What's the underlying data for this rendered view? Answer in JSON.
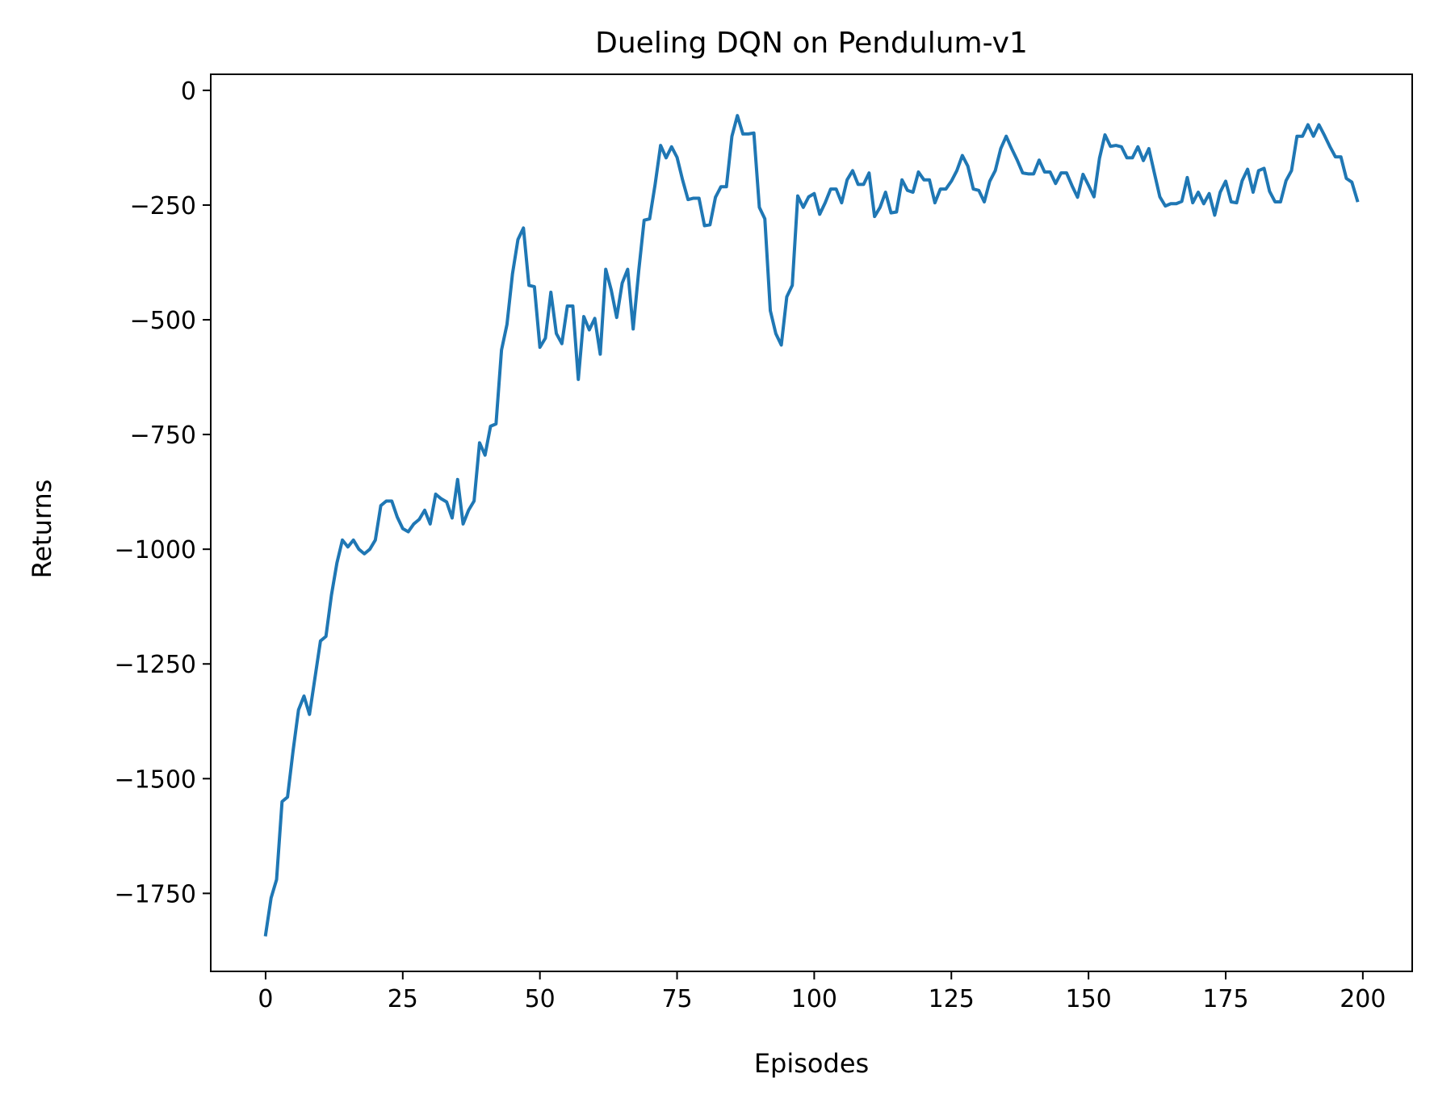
{
  "chart_data": {
    "type": "line",
    "title": "Dueling DQN on Pendulum-v1",
    "xlabel": "Episodes",
    "ylabel": "Returns",
    "xlim": [
      -10,
      209
    ],
    "ylim": [
      -1920,
      35
    ],
    "xticks": [
      0,
      25,
      50,
      75,
      100,
      125,
      150,
      175,
      200
    ],
    "xtick_labels": [
      "0",
      "25",
      "50",
      "75",
      "100",
      "125",
      "150",
      "175",
      "200"
    ],
    "yticks": [
      0,
      -250,
      -500,
      -750,
      -1000,
      -1250,
      -1500,
      -1750
    ],
    "ytick_labels": [
      "0",
      "−250",
      "−500",
      "−750",
      "−1000",
      "−1250",
      "−1500",
      "−1750"
    ],
    "grid": false,
    "series": [
      {
        "color": "#1f77b4",
        "x": [
          0,
          1,
          2,
          3,
          4,
          5,
          6,
          7,
          8,
          9,
          10,
          11,
          12,
          13,
          14,
          15,
          16,
          17,
          18,
          19,
          20,
          21,
          22,
          23,
          24,
          25,
          26,
          27,
          28,
          29,
          30,
          31,
          32,
          33,
          34,
          35,
          36,
          37,
          38,
          39,
          40,
          41,
          42,
          43,
          44,
          45,
          46,
          47,
          48,
          49,
          50,
          51,
          52,
          53,
          54,
          55,
          56,
          57,
          58,
          59,
          60,
          61,
          62,
          63,
          64,
          65,
          66,
          67,
          68,
          69,
          70,
          71,
          72,
          73,
          74,
          75,
          76,
          77,
          78,
          79,
          80,
          81,
          82,
          83,
          84,
          85,
          86,
          87,
          88,
          89,
          90,
          91,
          92,
          93,
          94,
          95,
          96,
          97,
          98,
          99,
          100,
          101,
          102,
          103,
          104,
          105,
          106,
          107,
          108,
          109,
          110,
          111,
          112,
          113,
          114,
          115,
          116,
          117,
          118,
          119,
          120,
          121,
          122,
          123,
          124,
          125,
          126,
          127,
          128,
          129,
          130,
          131,
          132,
          133,
          134,
          135,
          136,
          137,
          138,
          139,
          140,
          141,
          142,
          143,
          144,
          145,
          146,
          147,
          148,
          149,
          150,
          151,
          152,
          153,
          154,
          155,
          156,
          157,
          158,
          159,
          160,
          161,
          162,
          163,
          164,
          165,
          166,
          167,
          168,
          169,
          170,
          171,
          172,
          173,
          174,
          175,
          176,
          177,
          178,
          179,
          180,
          181,
          182,
          183,
          184,
          185,
          186,
          187,
          188,
          189,
          190,
          191,
          192,
          193,
          194,
          195,
          196,
          197,
          198,
          199
        ],
        "values": [
          -1840,
          -1760,
          -1720,
          -1550,
          -1540,
          -1440,
          -1350,
          -1320,
          -1360,
          -1280,
          -1200,
          -1190,
          -1100,
          -1030,
          -980,
          -995,
          -980,
          -1000,
          -1010,
          -1000,
          -980,
          -905,
          -895,
          -895,
          -930,
          -955,
          -962,
          -945,
          -935,
          -915,
          -945,
          -880,
          -890,
          -897,
          -932,
          -848,
          -945,
          -915,
          -895,
          -768,
          -795,
          -732,
          -727,
          -566,
          -510,
          -400,
          -325,
          -300,
          -425,
          -428,
          -560,
          -540,
          -440,
          -530,
          -552,
          -470,
          -470,
          -630,
          -493,
          -522,
          -497,
          -575,
          -390,
          -435,
          -495,
          -420,
          -390,
          -520,
          -395,
          -283,
          -280,
          -205,
          -120,
          -147,
          -123,
          -146,
          -195,
          -238,
          -235,
          -235,
          -295,
          -293,
          -233,
          -210,
          -210,
          -100,
          -55,
          -95,
          -95,
          -93,
          -255,
          -280,
          -480,
          -530,
          -555,
          -450,
          -425,
          -230,
          -255,
          -232,
          -225,
          -270,
          -245,
          -215,
          -215,
          -245,
          -195,
          -175,
          -205,
          -205,
          -180,
          -275,
          -255,
          -222,
          -267,
          -265,
          -195,
          -218,
          -222,
          -178,
          -195,
          -195,
          -245,
          -215,
          -215,
          -198,
          -175,
          -142,
          -165,
          -215,
          -218,
          -243,
          -198,
          -175,
          -127,
          -100,
          -127,
          -152,
          -180,
          -182,
          -182,
          -152,
          -178,
          -178,
          -203,
          -180,
          -180,
          -208,
          -233,
          -183,
          -207,
          -232,
          -148,
          -97,
          -122,
          -120,
          -123,
          -147,
          -147,
          -123,
          -153,
          -127,
          -180,
          -232,
          -252,
          -247,
          -247,
          -242,
          -190,
          -245,
          -222,
          -247,
          -225,
          -272,
          -222,
          -198,
          -243,
          -245,
          -197,
          -172,
          -222,
          -175,
          -170,
          -220,
          -243,
          -243,
          -197,
          -175,
          -100,
          -100,
          -75,
          -100,
          -75,
          -98,
          -123,
          -145,
          -145,
          -192,
          -200,
          -240
        ]
      }
    ]
  }
}
